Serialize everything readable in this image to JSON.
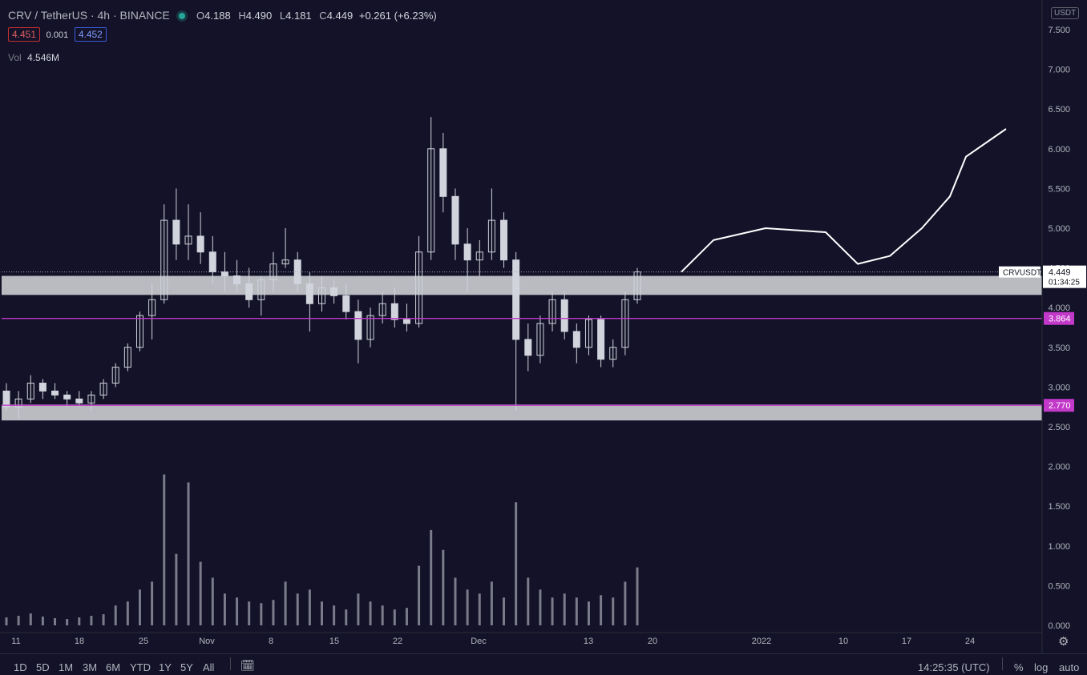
{
  "header": {
    "symbol": "CRV / TetherUS · 4h · BINANCE",
    "o_label": "O",
    "o_value": "4.188",
    "h_label": "H",
    "h_value": "4.490",
    "l_label": "L",
    "l_value": "4.181",
    "c_label": "C",
    "c_value": "4.449",
    "change": "+0.261 (+6.23%)",
    "bid": "4.451",
    "spread": "0.001",
    "ask": "4.452",
    "vol_label": "Vol",
    "vol_value": "4.546M",
    "status_color": "#26a69a"
  },
  "price_scale": {
    "unit": "USDT",
    "ticks": [
      "7.500",
      "7.000",
      "6.500",
      "6.000",
      "5.500",
      "5.000",
      "4.500",
      "4.000",
      "3.500",
      "3.000",
      "2.500",
      "2.000",
      "1.500",
      "1.000",
      "0.500",
      "0.000"
    ],
    "symbol_tag": "CRVUSDT",
    "last_price": "4.449",
    "countdown": "01:34:25",
    "level1_label": "3.864",
    "level2_label": "2.770"
  },
  "time_axis": {
    "labels": [
      "11",
      "18",
      "25",
      "Nov",
      "8",
      "15",
      "22",
      "Dec",
      "13",
      "20",
      "2022",
      "10",
      "17",
      "24"
    ]
  },
  "bottom_bar": {
    "ranges": [
      "1D",
      "5D",
      "1M",
      "3M",
      "6M",
      "YTD",
      "1Y",
      "5Y",
      "All"
    ],
    "clock": "14:25:35 (UTC)",
    "percent": "%",
    "log": "log",
    "auto": "auto"
  },
  "colors": {
    "background": "#131228",
    "candle": "#d1d4dc",
    "volume": "#d1d4dc",
    "zone_fill": "#c8cace",
    "level_line": "#c238c8",
    "drawing": "#ffffff",
    "last_price_line": "#9ea3b5"
  },
  "chart_data": {
    "type": "candlestick",
    "interval": "4h",
    "symbol": "CRV / TetherUS",
    "ylim": [
      2.4,
      7.6
    ],
    "candles": [
      {
        "t": "Oct 10",
        "o": 2.95,
        "h": 3.05,
        "l": 2.7,
        "c": 2.75
      },
      {
        "t": "Oct 11",
        "o": 2.75,
        "h": 2.95,
        "l": 2.6,
        "c": 2.85
      },
      {
        "t": "Oct 12",
        "o": 2.85,
        "h": 3.15,
        "l": 2.8,
        "c": 3.05
      },
      {
        "t": "Oct 13",
        "o": 3.05,
        "h": 3.1,
        "l": 2.85,
        "c": 2.95
      },
      {
        "t": "Oct 14",
        "o": 2.95,
        "h": 3.05,
        "l": 2.85,
        "c": 2.9
      },
      {
        "t": "Oct 15",
        "o": 2.9,
        "h": 2.95,
        "l": 2.75,
        "c": 2.85
      },
      {
        "t": "Oct 16",
        "o": 2.85,
        "h": 2.95,
        "l": 2.75,
        "c": 2.8
      },
      {
        "t": "Oct 17",
        "o": 2.8,
        "h": 2.95,
        "l": 2.7,
        "c": 2.9
      },
      {
        "t": "Oct 18",
        "o": 2.9,
        "h": 3.1,
        "l": 2.85,
        "c": 3.05
      },
      {
        "t": "Oct 19",
        "o": 3.05,
        "h": 3.3,
        "l": 3.0,
        "c": 3.25
      },
      {
        "t": "Oct 20",
        "o": 3.25,
        "h": 3.55,
        "l": 3.2,
        "c": 3.5
      },
      {
        "t": "Oct 21",
        "o": 3.5,
        "h": 3.95,
        "l": 3.45,
        "c": 3.9
      },
      {
        "t": "Oct 22",
        "o": 3.9,
        "h": 4.3,
        "l": 3.6,
        "c": 4.1
      },
      {
        "t": "Oct 23",
        "o": 4.1,
        "h": 5.3,
        "l": 4.05,
        "c": 5.1
      },
      {
        "t": "Oct 24",
        "o": 5.1,
        "h": 5.5,
        "l": 4.6,
        "c": 4.8
      },
      {
        "t": "Oct 25",
        "o": 4.8,
        "h": 5.3,
        "l": 4.6,
        "c": 4.9
      },
      {
        "t": "Oct 26",
        "o": 4.9,
        "h": 5.2,
        "l": 4.55,
        "c": 4.7
      },
      {
        "t": "Oct 27",
        "o": 4.7,
        "h": 4.9,
        "l": 4.3,
        "c": 4.45
      },
      {
        "t": "Oct 28",
        "o": 4.45,
        "h": 4.7,
        "l": 4.2,
        "c": 4.4
      },
      {
        "t": "Oct 29",
        "o": 4.4,
        "h": 4.6,
        "l": 4.2,
        "c": 4.3
      },
      {
        "t": "Oct 30",
        "o": 4.3,
        "h": 4.5,
        "l": 4.0,
        "c": 4.1
      },
      {
        "t": "Oct 31",
        "o": 4.1,
        "h": 4.4,
        "l": 3.9,
        "c": 4.35
      },
      {
        "t": "Nov 1",
        "o": 4.35,
        "h": 4.7,
        "l": 4.2,
        "c": 4.55
      },
      {
        "t": "Nov 2",
        "o": 4.55,
        "h": 5.0,
        "l": 4.5,
        "c": 4.6
      },
      {
        "t": "Nov 3",
        "o": 4.6,
        "h": 4.7,
        "l": 4.2,
        "c": 4.3
      },
      {
        "t": "Nov 4",
        "o": 4.3,
        "h": 4.45,
        "l": 3.7,
        "c": 4.05
      },
      {
        "t": "Nov 5",
        "o": 4.05,
        "h": 4.4,
        "l": 3.95,
        "c": 4.25
      },
      {
        "t": "Nov 6",
        "o": 4.25,
        "h": 4.35,
        "l": 4.05,
        "c": 4.15
      },
      {
        "t": "Nov 7",
        "o": 4.15,
        "h": 4.3,
        "l": 3.85,
        "c": 3.95
      },
      {
        "t": "Nov 8",
        "o": 3.95,
        "h": 4.1,
        "l": 3.3,
        "c": 3.6
      },
      {
        "t": "Nov 9",
        "o": 3.6,
        "h": 4.0,
        "l": 3.5,
        "c": 3.9
      },
      {
        "t": "Nov 10",
        "o": 3.9,
        "h": 4.2,
        "l": 3.8,
        "c": 4.05
      },
      {
        "t": "Nov 11",
        "o": 4.05,
        "h": 4.25,
        "l": 3.75,
        "c": 3.85
      },
      {
        "t": "Nov 12",
        "o": 3.85,
        "h": 4.05,
        "l": 3.7,
        "c": 3.8
      },
      {
        "t": "Nov 13",
        "o": 3.8,
        "h": 4.9,
        "l": 3.75,
        "c": 4.7
      },
      {
        "t": "Nov 14",
        "o": 4.7,
        "h": 6.4,
        "l": 4.6,
        "c": 6.0
      },
      {
        "t": "Nov 15",
        "o": 6.0,
        "h": 6.2,
        "l": 5.2,
        "c": 5.4
      },
      {
        "t": "Nov 16",
        "o": 5.4,
        "h": 5.5,
        "l": 4.6,
        "c": 4.8
      },
      {
        "t": "Nov 17",
        "o": 4.8,
        "h": 5.0,
        "l": 4.2,
        "c": 4.6
      },
      {
        "t": "Nov 18",
        "o": 4.6,
        "h": 4.85,
        "l": 4.4,
        "c": 4.7
      },
      {
        "t": "Nov 19",
        "o": 4.7,
        "h": 5.5,
        "l": 4.6,
        "c": 5.1
      },
      {
        "t": "Nov 20",
        "o": 5.1,
        "h": 5.2,
        "l": 4.5,
        "c": 4.6
      },
      {
        "t": "Nov 21",
        "o": 4.6,
        "h": 4.7,
        "l": 2.7,
        "c": 3.6
      },
      {
        "t": "Nov 22",
        "o": 3.6,
        "h": 3.8,
        "l": 3.2,
        "c": 3.4
      },
      {
        "t": "Nov 23",
        "o": 3.4,
        "h": 3.9,
        "l": 3.3,
        "c": 3.8
      },
      {
        "t": "Nov 24",
        "o": 3.8,
        "h": 4.2,
        "l": 3.7,
        "c": 4.1
      },
      {
        "t": "Nov 25",
        "o": 4.1,
        "h": 4.2,
        "l": 3.6,
        "c": 3.7
      },
      {
        "t": "Nov 26",
        "o": 3.7,
        "h": 3.8,
        "l": 3.3,
        "c": 3.5
      },
      {
        "t": "Nov 27",
        "o": 3.5,
        "h": 3.9,
        "l": 3.4,
        "c": 3.85
      },
      {
        "t": "Nov 28",
        "o": 3.85,
        "h": 3.9,
        "l": 3.25,
        "c": 3.35
      },
      {
        "t": "Nov 29",
        "o": 3.35,
        "h": 3.6,
        "l": 3.25,
        "c": 3.5
      },
      {
        "t": "Nov 30",
        "o": 3.5,
        "h": 4.2,
        "l": 3.4,
        "c": 4.1
      },
      {
        "t": "Dec 1",
        "o": 4.1,
        "h": 4.5,
        "l": 4.05,
        "c": 4.45
      }
    ],
    "volume": [
      0.1,
      0.12,
      0.15,
      0.11,
      0.09,
      0.08,
      0.1,
      0.12,
      0.14,
      0.25,
      0.3,
      0.45,
      0.55,
      1.9,
      0.9,
      1.8,
      0.8,
      0.6,
      0.4,
      0.35,
      0.3,
      0.28,
      0.32,
      0.55,
      0.4,
      0.45,
      0.3,
      0.25,
      0.2,
      0.4,
      0.3,
      0.25,
      0.2,
      0.22,
      0.75,
      1.2,
      0.95,
      0.6,
      0.45,
      0.4,
      0.55,
      0.35,
      1.55,
      0.6,
      0.45,
      0.35,
      0.4,
      0.35,
      0.3,
      0.38,
      0.35,
      0.55,
      0.73
    ],
    "volume_ylim": [
      0,
      2.2
    ],
    "support_zones": [
      [
        4.16,
        4.4
      ],
      [
        2.58,
        2.78
      ]
    ],
    "horizontal_levels": [
      3.864,
      2.77
    ],
    "last_price": 4.449,
    "projection_path": [
      {
        "t": "Dec 4",
        "p": 4.45
      },
      {
        "t": "Dec 7",
        "p": 4.85
      },
      {
        "t": "Dec 12",
        "p": 5.0
      },
      {
        "t": "Dec 17",
        "p": 4.95
      },
      {
        "t": "Dec 20",
        "p": 4.55
      },
      {
        "t": "Dec 25",
        "p": 4.65
      },
      {
        "t": "Dec 31",
        "p": 5.0
      },
      {
        "t": "Jan 3",
        "p": 5.4
      },
      {
        "t": "Jan 8",
        "p": 5.9
      },
      {
        "t": "Jan 14",
        "p": 6.25
      }
    ]
  }
}
